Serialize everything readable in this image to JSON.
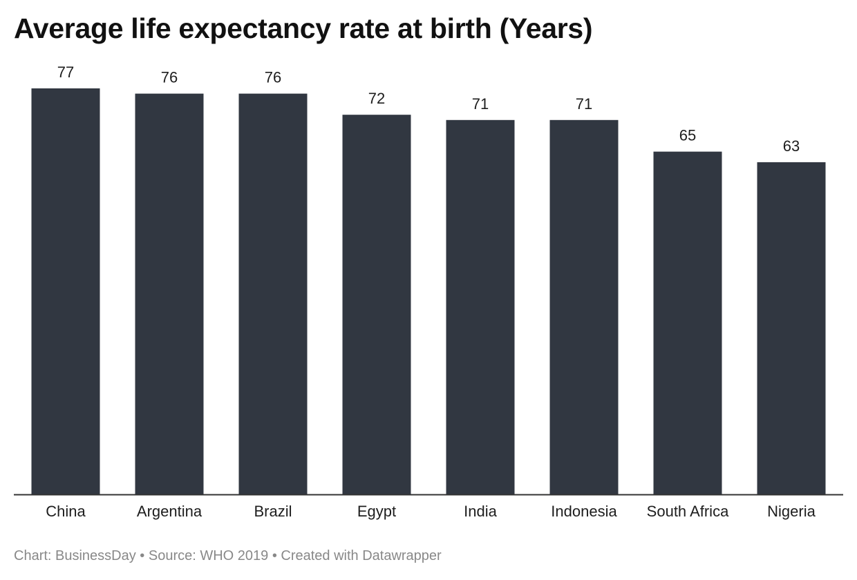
{
  "chart_data": {
    "type": "bar",
    "title": "Average life expectancy rate at birth (Years)",
    "categories": [
      "China",
      "Argentina",
      "Brazil",
      "Egypt",
      "India",
      "Indonesia",
      "South Africa",
      "Nigeria"
    ],
    "values": [
      77,
      76,
      76,
      72,
      71,
      71,
      65,
      63
    ],
    "xlabel": "",
    "ylabel": "",
    "ylim": [
      0,
      77
    ],
    "grid": false,
    "legend": "none",
    "bar_color": "#313741",
    "baseline_color": "#333333"
  },
  "footer": {
    "credit": "Chart: BusinessDay • Source: WHO 2019 • Created with Datawrapper"
  }
}
